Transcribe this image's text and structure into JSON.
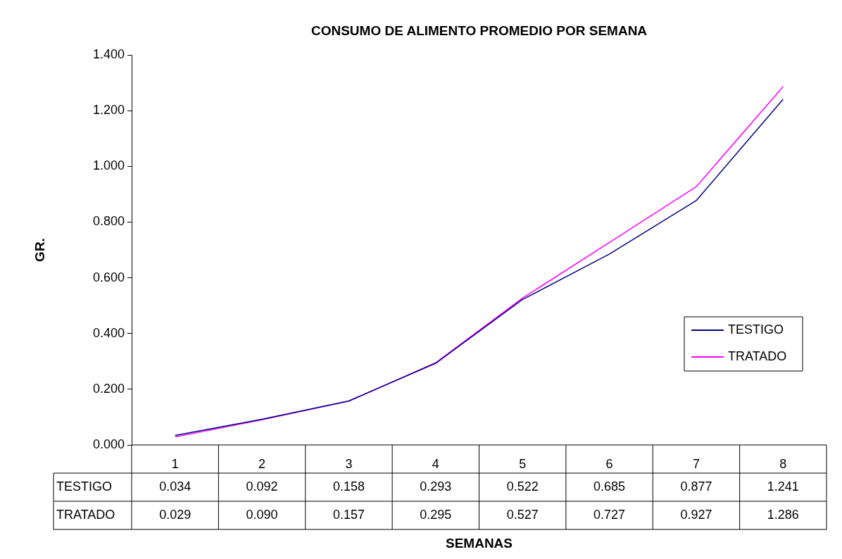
{
  "chart_data": {
    "type": "line",
    "title": "CONSUMO DE ALIMENTO PROMEDIO POR SEMANA",
    "xlabel": "SEMANAS",
    "ylabel": "GR.",
    "categories": [
      "1",
      "2",
      "3",
      "4",
      "5",
      "6",
      "7",
      "8"
    ],
    "series": [
      {
        "name": "TESTIGO",
        "color": "#000080",
        "values": [
          0.034,
          0.092,
          0.158,
          0.293,
          0.522,
          0.685,
          0.877,
          1.241
        ],
        "value_labels": [
          "0.034",
          "0.092",
          "0.158",
          "0.293",
          "0.522",
          "0.685",
          "0.877",
          "1.241"
        ]
      },
      {
        "name": "TRATADO",
        "color": "#ff00ff",
        "values": [
          0.029,
          0.09,
          0.157,
          0.295,
          0.527,
          0.727,
          0.927,
          1.286
        ],
        "value_labels": [
          "0.029",
          "0.090",
          "0.157",
          "0.295",
          "0.527",
          "0.727",
          "0.927",
          "1.286"
        ]
      }
    ],
    "ylim": [
      0,
      1.4
    ],
    "yticks": [
      {
        "value": 0,
        "label": "0.000"
      },
      {
        "value": 0.2,
        "label": "0.200"
      },
      {
        "value": 0.4,
        "label": "0.400"
      },
      {
        "value": 0.6,
        "label": "0.600"
      },
      {
        "value": 0.8,
        "label": "0.800"
      },
      {
        "value": 1,
        "label": "1.000"
      },
      {
        "value": 1.2,
        "label": "1.200"
      },
      {
        "value": 1.4,
        "label": "1.400"
      }
    ],
    "grid": false,
    "legend": "right",
    "marker": "none",
    "line_style": "solid"
  }
}
